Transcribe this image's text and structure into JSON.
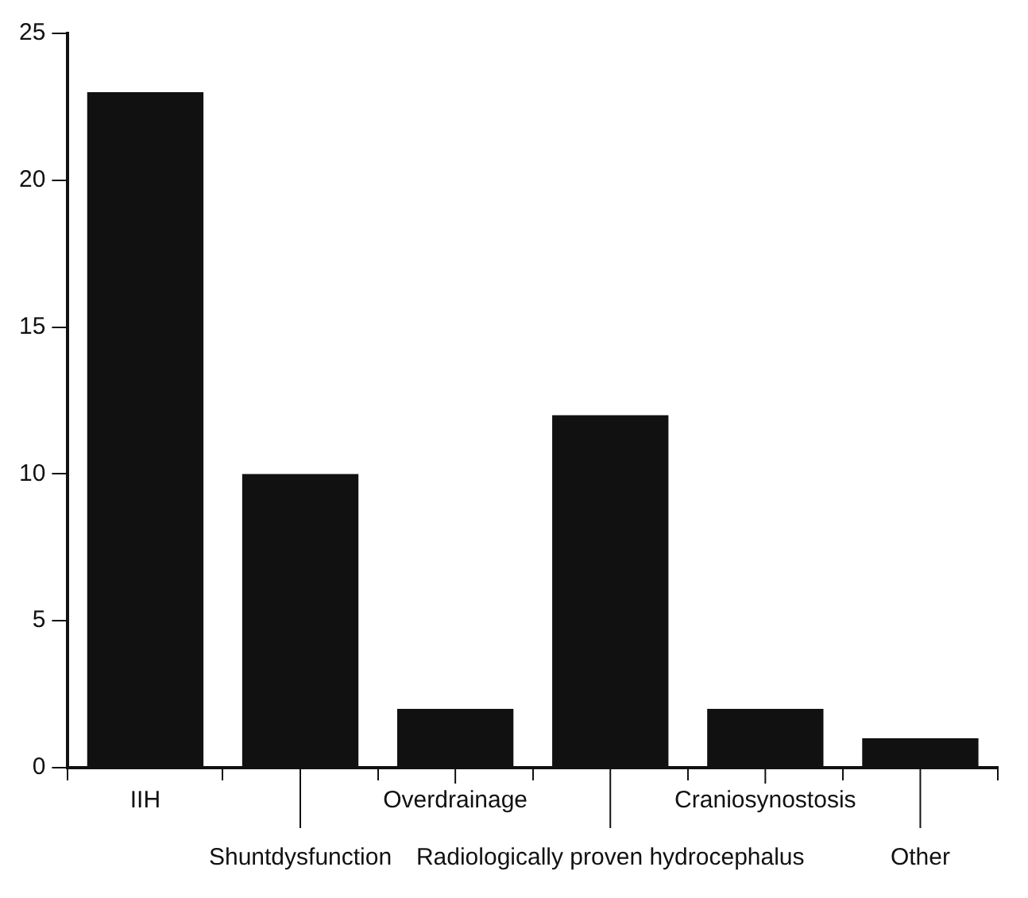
{
  "chart_data": {
    "type": "bar",
    "categories": [
      "IIH",
      "Shuntdysfunction",
      "Overdrainage",
      "Radiologically proven hydrocephalus",
      "Craniosynostosis",
      "Other"
    ],
    "values": [
      23,
      10,
      2,
      12,
      2,
      1
    ],
    "color": "#111111",
    "ylim": [
      0,
      25
    ],
    "yticks": [
      0,
      5,
      10,
      15,
      20,
      25
    ],
    "grid": false
  }
}
